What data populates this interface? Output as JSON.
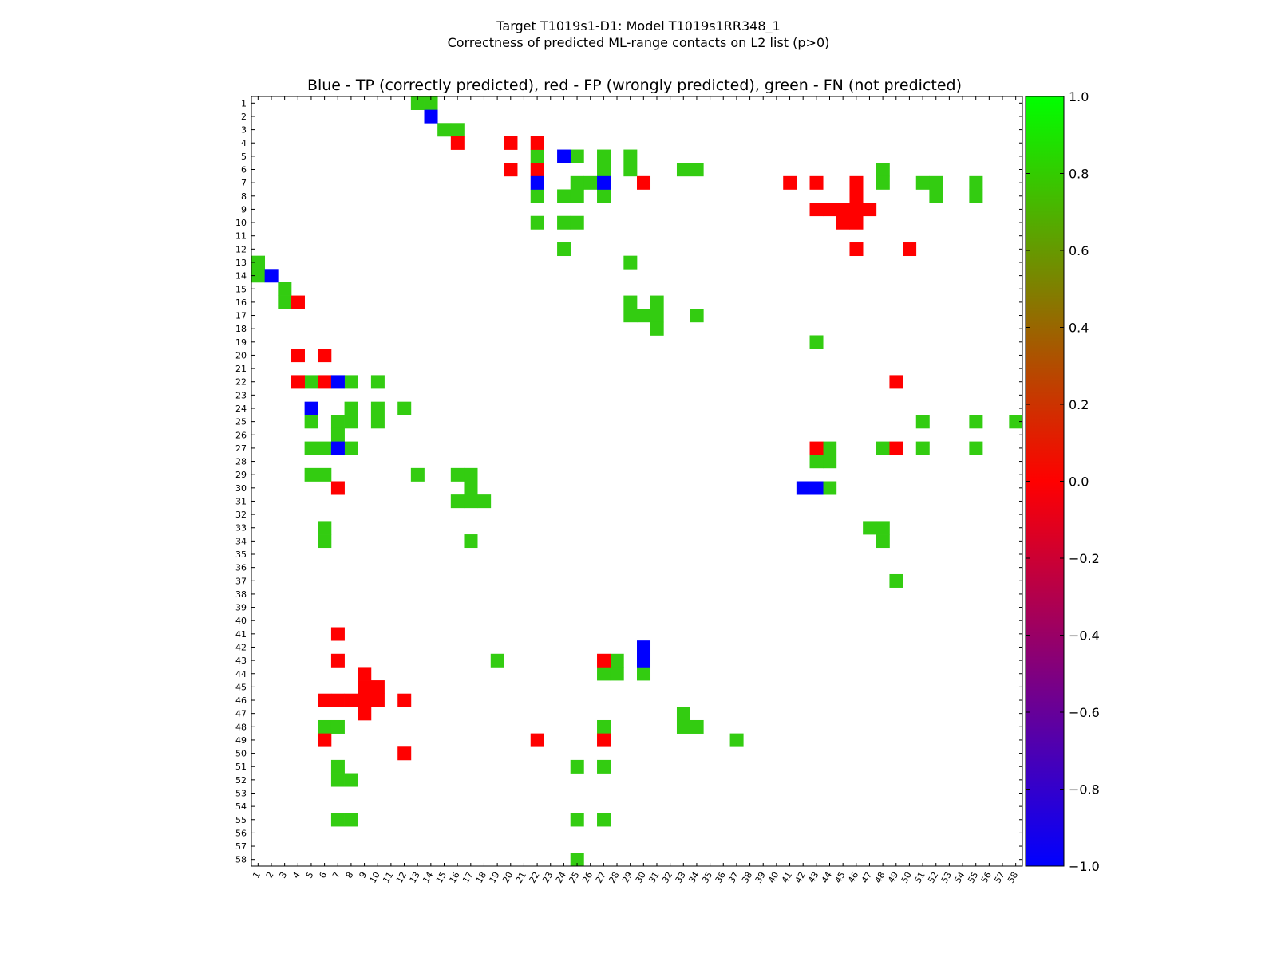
{
  "chart_data": {
    "type": "heatmap",
    "suptitle_line1": "Target T1019s1-D1: Model T1019s1RR348_1",
    "suptitle_line2": "Correctness of predicted ML-range contacts on L2 list (p>0)",
    "title": "Blue - TP (correctly predicted), red - FP (wrongly predicted), green - FN (not predicted)",
    "n": 58,
    "x_ticks": [
      "1",
      "2",
      "3",
      "4",
      "5",
      "6",
      "7",
      "8",
      "9",
      "10",
      "11",
      "12",
      "13",
      "14",
      "15",
      "16",
      "17",
      "18",
      "19",
      "20",
      "21",
      "22",
      "23",
      "24",
      "25",
      "26",
      "27",
      "28",
      "29",
      "30",
      "31",
      "32",
      "33",
      "34",
      "35",
      "36",
      "37",
      "38",
      "39",
      "40",
      "41",
      "42",
      "43",
      "44",
      "45",
      "46",
      "47",
      "48",
      "49",
      "50",
      "51",
      "52",
      "53",
      "54",
      "55",
      "56",
      "57",
      "58"
    ],
    "y_ticks": [
      "1",
      "2",
      "3",
      "4",
      "5",
      "6",
      "7",
      "8",
      "9",
      "10",
      "11",
      "12",
      "13",
      "14",
      "15",
      "16",
      "17",
      "18",
      "19",
      "20",
      "21",
      "22",
      "23",
      "24",
      "25",
      "26",
      "27",
      "28",
      "29",
      "30",
      "31",
      "32",
      "33",
      "34",
      "35",
      "36",
      "37",
      "38",
      "39",
      "40",
      "41",
      "42",
      "43",
      "44",
      "45",
      "46",
      "47",
      "48",
      "49",
      "50",
      "51",
      "52",
      "53",
      "54",
      "55",
      "56",
      "57",
      "58"
    ],
    "colorbar_range": [
      -1.0,
      1.0
    ],
    "colorbar_ticks": [
      "1.0",
      "0.8",
      "0.6",
      "0.4",
      "0.2",
      "0.0",
      "−0.2",
      "−0.4",
      "−0.6",
      "−0.8",
      "−1.0"
    ],
    "colorbar_tick_values": [
      1.0,
      0.8,
      0.6,
      0.4,
      0.2,
      0.0,
      -0.2,
      -0.4,
      -0.6,
      -0.8,
      -1.0
    ],
    "legend": {
      "blue": "TP (correctly predicted)",
      "red": "FP (wrongly predicted)",
      "green": "FN (not predicted)"
    },
    "colors": {
      "tp": "#0000ff",
      "fp": "#ff0000",
      "fn": "#33cc11"
    },
    "tp": [
      [
        2,
        14
      ],
      [
        5,
        24
      ],
      [
        7,
        22
      ],
      [
        7,
        27
      ],
      [
        14,
        2
      ],
      [
        22,
        7
      ],
      [
        24,
        5
      ],
      [
        27,
        7
      ],
      [
        30,
        42
      ],
      [
        30,
        43
      ],
      [
        42,
        30
      ],
      [
        43,
        30
      ]
    ],
    "fp": [
      [
        4,
        16
      ],
      [
        4,
        20
      ],
      [
        4,
        22
      ],
      [
        6,
        20
      ],
      [
        6,
        22
      ],
      [
        7,
        30
      ],
      [
        7,
        41
      ],
      [
        7,
        43
      ],
      [
        7,
        46
      ],
      [
        8,
        46
      ],
      [
        9,
        43
      ],
      [
        9,
        44
      ],
      [
        9,
        45
      ],
      [
        9,
        46
      ],
      [
        9,
        47
      ],
      [
        10,
        45
      ],
      [
        10,
        46
      ],
      [
        12,
        46
      ],
      [
        12,
        50
      ],
      [
        16,
        4
      ],
      [
        20,
        4
      ],
      [
        20,
        6
      ],
      [
        22,
        4
      ],
      [
        22,
        6
      ],
      [
        22,
        49
      ],
      [
        27,
        43
      ],
      [
        27,
        49
      ],
      [
        30,
        7
      ],
      [
        41,
        7
      ],
      [
        43,
        7
      ],
      [
        43,
        27
      ],
      [
        44,
        9
      ],
      [
        45,
        9
      ],
      [
        45,
        10
      ],
      [
        46,
        6
      ],
      [
        46,
        7
      ],
      [
        46,
        8
      ],
      [
        46,
        9
      ],
      [
        46,
        10
      ],
      [
        46,
        12
      ],
      [
        47,
        9
      ],
      [
        49,
        6
      ],
      [
        49,
        22
      ],
      [
        49,
        27
      ],
      [
        50,
        12
      ]
    ],
    "fn": [
      [
        1,
        13
      ],
      [
        1,
        14
      ],
      [
        3,
        15
      ],
      [
        3,
        16
      ],
      [
        5,
        22
      ],
      [
        5,
        25
      ],
      [
        5,
        27
      ],
      [
        5,
        29
      ],
      [
        6,
        27
      ],
      [
        6,
        29
      ],
      [
        6,
        33
      ],
      [
        6,
        34
      ],
      [
        6,
        48
      ],
      [
        7,
        25
      ],
      [
        7,
        26
      ],
      [
        7,
        48
      ],
      [
        7,
        51
      ],
      [
        7,
        52
      ],
      [
        7,
        55
      ],
      [
        8,
        22
      ],
      [
        8,
        24
      ],
      [
        8,
        25
      ],
      [
        8,
        27
      ],
      [
        8,
        52
      ],
      [
        8,
        55
      ],
      [
        10,
        22
      ],
      [
        10,
        24
      ],
      [
        10,
        25
      ],
      [
        12,
        24
      ],
      [
        13,
        1
      ],
      [
        13,
        29
      ],
      [
        14,
        1
      ],
      [
        15,
        3
      ],
      [
        16,
        3
      ],
      [
        16,
        29
      ],
      [
        16,
        31
      ],
      [
        17,
        29
      ],
      [
        17,
        30
      ],
      [
        17,
        31
      ],
      [
        17,
        34
      ],
      [
        18,
        31
      ],
      [
        19,
        43
      ],
      [
        22,
        5
      ],
      [
        22,
        8
      ],
      [
        22,
        10
      ],
      [
        24,
        8
      ],
      [
        24,
        10
      ],
      [
        24,
        12
      ],
      [
        25,
        5
      ],
      [
        25,
        7
      ],
      [
        25,
        8
      ],
      [
        25,
        10
      ],
      [
        25,
        51
      ],
      [
        25,
        55
      ],
      [
        25,
        58
      ],
      [
        26,
        7
      ],
      [
        27,
        5
      ],
      [
        27,
        6
      ],
      [
        27,
        8
      ],
      [
        27,
        44
      ],
      [
        27,
        48
      ],
      [
        27,
        51
      ],
      [
        27,
        55
      ],
      [
        28,
        43
      ],
      [
        28,
        44
      ],
      [
        29,
        5
      ],
      [
        29,
        6
      ],
      [
        29,
        13
      ],
      [
        29,
        16
      ],
      [
        29,
        17
      ],
      [
        30,
        17
      ],
      [
        30,
        44
      ],
      [
        31,
        16
      ],
      [
        31,
        17
      ],
      [
        31,
        18
      ],
      [
        33,
        6
      ],
      [
        33,
        47
      ],
      [
        33,
        48
      ],
      [
        34,
        6
      ],
      [
        34,
        17
      ],
      [
        34,
        48
      ],
      [
        37,
        49
      ],
      [
        43,
        19
      ],
      [
        43,
        28
      ],
      [
        44,
        27
      ],
      [
        44,
        28
      ],
      [
        44,
        30
      ],
      [
        47,
        33
      ],
      [
        48,
        6
      ],
      [
        48,
        7
      ],
      [
        48,
        27
      ],
      [
        48,
        33
      ],
      [
        48,
        34
      ],
      [
        49,
        37
      ],
      [
        51,
        7
      ],
      [
        51,
        25
      ],
      [
        51,
        27
      ],
      [
        52,
        7
      ],
      [
        52,
        8
      ],
      [
        55,
        7
      ],
      [
        55,
        8
      ],
      [
        55,
        25
      ],
      [
        55,
        27
      ],
      [
        58,
        25
      ]
    ]
  }
}
